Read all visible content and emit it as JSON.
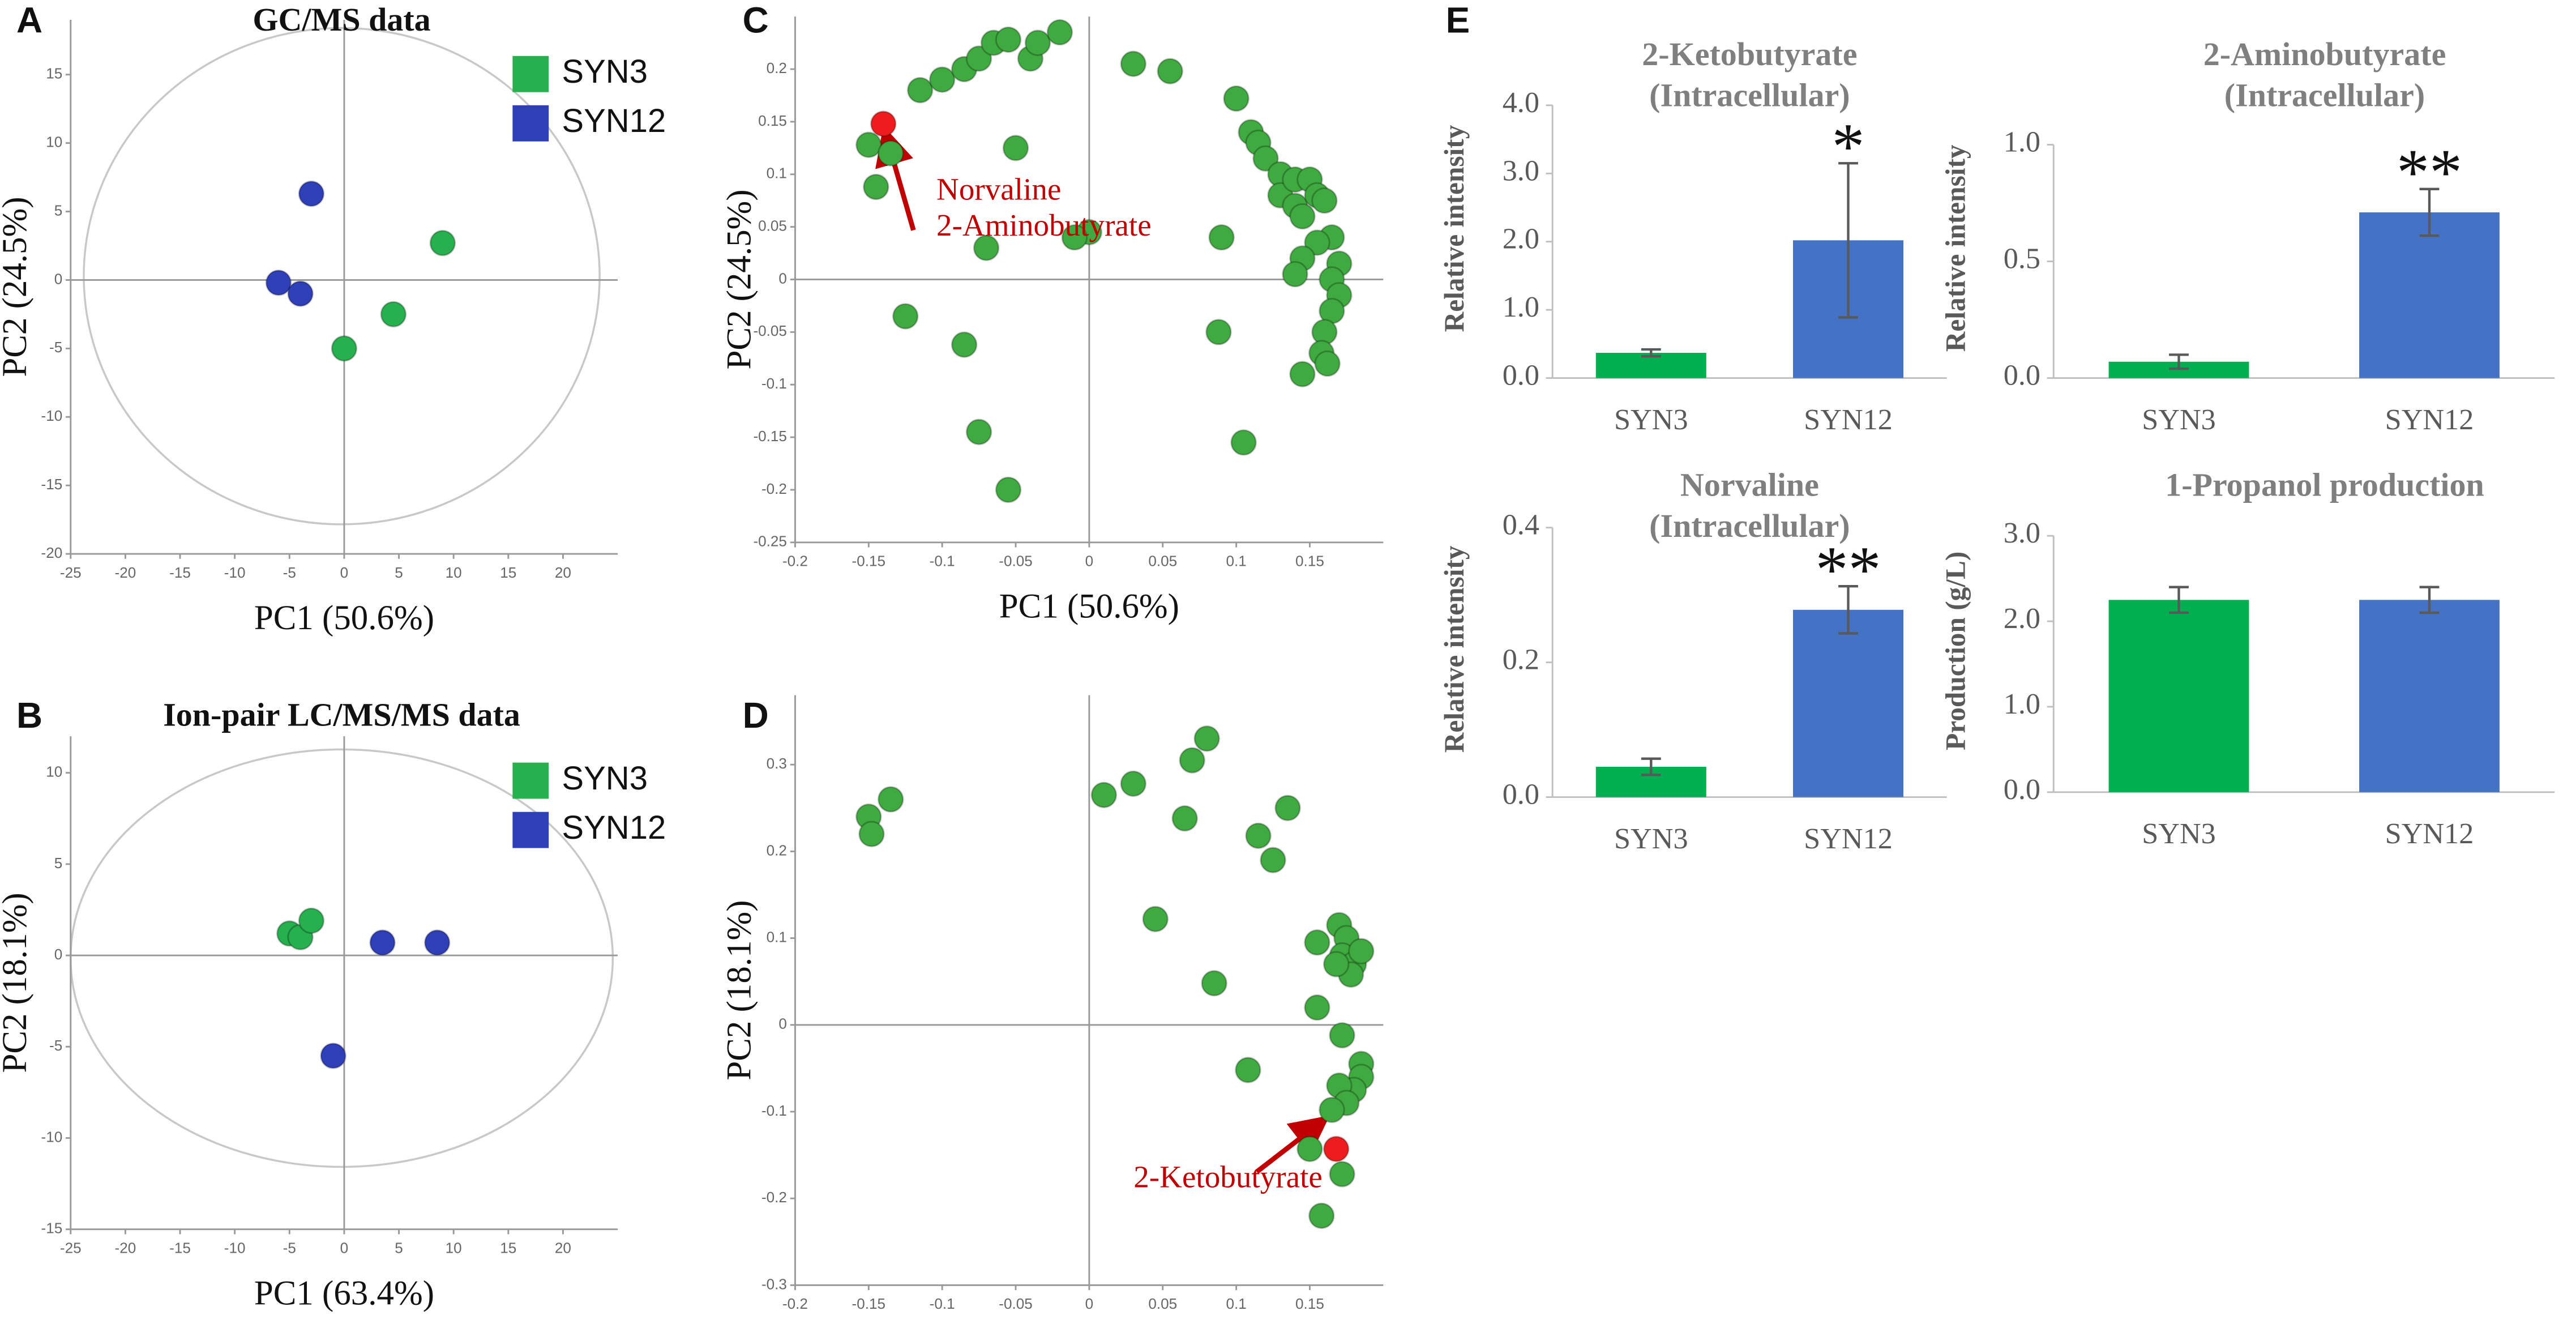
{
  "chart_data": [
    {
      "type": "scatter",
      "label": "A",
      "title": "GC/MS data",
      "xlabel": "PC1 (50.6%)",
      "ylabel": "PC2 (24.5%)",
      "xlim": [
        -25,
        25
      ],
      "ylim": [
        -20,
        19
      ],
      "xticks": [
        -25,
        -20,
        -15,
        -10,
        -5,
        0,
        5,
        10,
        15,
        20
      ],
      "yticks": [
        -20,
        -15,
        -10,
        -5,
        0,
        5,
        10,
        15
      ],
      "legend": "upper right",
      "series": [
        {
          "name": "SYN3",
          "color": "#26b04e",
          "x": [
            9,
            4.5,
            0
          ],
          "y": [
            2.7,
            -2.5,
            -5
          ]
        },
        {
          "name": "SYN12",
          "color": "#2f3fb8",
          "x": [
            -3,
            -6,
            -4
          ],
          "y": [
            6.3,
            -0.2,
            -1
          ]
        }
      ]
    },
    {
      "type": "scatter",
      "label": "B",
      "title": "Ion-pair LC/MS/MS data",
      "xlabel": "PC1 (63.4%)",
      "ylabel": "PC2 (18.1%)",
      "xlim": [
        -25,
        25
      ],
      "ylim": [
        -15,
        12
      ],
      "xticks": [
        -25,
        -20,
        -15,
        -10,
        -5,
        0,
        5,
        10,
        15,
        20
      ],
      "yticks": [
        -15,
        -10,
        -5,
        0,
        5,
        10
      ],
      "legend": "upper right",
      "series": [
        {
          "name": "SYN3",
          "color": "#26b04e",
          "x": [
            -5,
            -4,
            -3
          ],
          "y": [
            1.2,
            1,
            1.9
          ]
        },
        {
          "name": "SYN12",
          "color": "#2f3fb8",
          "x": [
            3.5,
            8.5,
            -1
          ],
          "y": [
            0.7,
            0.7,
            -5.5
          ]
        }
      ]
    },
    {
      "type": "scatter",
      "label": "C",
      "xlabel": "PC1 (50.6%)",
      "ylabel": "PC2 (24.5%)",
      "xlim": [
        -0.2,
        0.2
      ],
      "ylim": [
        -0.25,
        0.25
      ],
      "xticks": [
        -0.2,
        -0.15,
        -0.1,
        -0.05,
        0,
        0.05,
        0.1,
        0.15
      ],
      "yticks": [
        -0.25,
        -0.2,
        -0.15,
        -0.1,
        -0.05,
        0,
        0.05,
        0.1,
        0.15,
        0.2
      ],
      "series": [
        {
          "color": "#3faa3f",
          "x": [
            -0.115,
            -0.1,
            -0.085,
            -0.075,
            -0.065,
            -0.055,
            -0.04,
            -0.035,
            -0.02,
            0.03,
            0.055,
            0.1,
            0.11,
            0.115,
            0.12,
            0.13,
            0.13,
            0.14,
            0.14,
            0.145,
            0.15,
            0.155,
            0.16,
            0.165,
            0.155,
            0.145,
            0.14,
            0.17,
            0.165,
            0.17,
            0.165,
            0.16,
            0.158,
            0.162,
            0.145,
            0.09,
            0.088,
            0.105,
            -0.15,
            -0.145,
            -0.135,
            -0.125,
            -0.085,
            -0.075,
            -0.055,
            -0.05,
            -0.07,
            0,
            -0.01
          ],
          "y": [
            0.18,
            0.19,
            0.2,
            0.21,
            0.225,
            0.228,
            0.21,
            0.225,
            0.235,
            0.205,
            0.198,
            0.172,
            0.14,
            0.13,
            0.115,
            0.1,
            0.08,
            0.095,
            0.07,
            0.06,
            0.095,
            0.08,
            0.075,
            0.04,
            0.035,
            0.02,
            0.005,
            0.015,
            0,
            -0.015,
            -0.03,
            -0.05,
            -0.07,
            -0.08,
            -0.09,
            0.04,
            -0.05,
            -0.155,
            0.128,
            0.088,
            0.12,
            -0.035,
            -0.062,
            -0.145,
            -0.2,
            0.125,
            0.03,
            0.045,
            0.04
          ]
        },
        {
          "color": "#ee1c1c",
          "x": [
            -0.14
          ],
          "y": [
            0.148
          ]
        }
      ],
      "annotation": [
        "Norvaline",
        "2-Aminobutyrate"
      ]
    },
    {
      "type": "scatter",
      "label": "D",
      "xlabel": "PC1 (63.4%)",
      "ylabel": "PC2 (18.1%)",
      "xlim": [
        -0.2,
        0.2
      ],
      "ylim": [
        -0.3,
        0.38
      ],
      "xticks": [
        -0.2,
        -0.15,
        -0.1,
        -0.05,
        0,
        0.05,
        0.1,
        0.15
      ],
      "yticks": [
        -0.3,
        -0.2,
        -0.1,
        0,
        0.1,
        0.2,
        0.3
      ],
      "series": [
        {
          "color": "#3faa3f",
          "x": [
            -0.15,
            -0.148,
            -0.135,
            0.01,
            0.03,
            0.07,
            0.08,
            0.065,
            0.115,
            0.125,
            0.135,
            0.045,
            0.085,
            0.155,
            0.17,
            0.175,
            0.172,
            0.18,
            0.185,
            0.178,
            0.168,
            0.155,
            0.172,
            0.185,
            0.185,
            0.18,
            0.17,
            0.175,
            0.165,
            0.108,
            0.15,
            0.158,
            0.172
          ],
          "y": [
            0.24,
            0.22,
            0.26,
            0.265,
            0.278,
            0.305,
            0.33,
            0.238,
            0.218,
            0.19,
            0.25,
            0.122,
            0.048,
            0.095,
            0.115,
            0.1,
            0.08,
            0.07,
            0.085,
            0.058,
            0.07,
            0.02,
            -0.012,
            -0.045,
            -0.06,
            -0.075,
            -0.07,
            -0.09,
            -0.098,
            -0.052,
            -0.143,
            -0.22,
            -0.172
          ]
        },
        {
          "color": "#ee1c1c",
          "x": [
            0.168
          ],
          "y": [
            -0.143
          ]
        }
      ],
      "annotation": [
        "2-Ketobutyrate"
      ]
    },
    {
      "type": "bar",
      "label": "E",
      "title": [
        "2-Ketobutyrate",
        "(Intracellular)"
      ],
      "ylabel": "Relative intensity",
      "categories": [
        "SYN3",
        "SYN12"
      ],
      "values": [
        0.37,
        2.02
      ],
      "errors": [
        0.05,
        1.13
      ],
      "colors": [
        "#00b050",
        "#4472c4"
      ],
      "significance": [
        null,
        "*"
      ],
      "ylim": [
        0,
        4
      ],
      "yticks": [
        {
          "value": 0,
          "label": "0.0"
        },
        {
          "value": 1,
          "label": "1.0"
        },
        {
          "value": 2,
          "label": "2.0"
        },
        {
          "value": 3,
          "label": "3.0"
        },
        {
          "value": 4,
          "label": "4.0"
        }
      ]
    },
    {
      "type": "bar",
      "title": [
        "2-Aminobutyrate",
        "(Intracellular)"
      ],
      "ylabel": "Relative intensity",
      "categories": [
        "SYN3",
        "SYN12"
      ],
      "values": [
        0.07,
        0.71
      ],
      "errors": [
        0.03,
        0.1
      ],
      "colors": [
        "#00b050",
        "#4472c4"
      ],
      "significance": [
        null,
        "**"
      ],
      "ylim": [
        0,
        1
      ],
      "yticks": [
        {
          "value": 0,
          "label": "0.0"
        },
        0.5,
        {
          "value": 1,
          "label": "1.0"
        }
      ]
    },
    {
      "type": "bar",
      "title": [
        "Norvaline",
        "(Intracellular)"
      ],
      "ylabel": "Relative intensity",
      "categories": [
        "SYN3",
        "SYN12"
      ],
      "values": [
        0.045,
        0.278
      ],
      "errors": [
        0.012,
        0.035
      ],
      "colors": [
        "#00b050",
        "#4472c4"
      ],
      "significance": [
        null,
        "**"
      ],
      "ylim": [
        0,
        0.4
      ],
      "yticks": [
        {
          "value": 0,
          "label": "0.0"
        },
        0.2,
        0.4
      ]
    },
    {
      "type": "bar",
      "title": [
        "1-Propanol production"
      ],
      "ylabel": "Production (g/L)",
      "categories": [
        "SYN3",
        "SYN12"
      ],
      "values": [
        2.25,
        2.25
      ],
      "errors": [
        0.15,
        0.15
      ],
      "colors": [
        "#00b050",
        "#4472c4"
      ],
      "significance": [
        null,
        null
      ],
      "ylim": [
        0,
        3
      ],
      "yticks": [
        {
          "value": 0,
          "label": "0.0"
        },
        {
          "value": 1,
          "label": "1.0"
        },
        {
          "value": 2,
          "label": "2.0"
        },
        {
          "value": 3,
          "label": "3.0"
        }
      ]
    }
  ]
}
